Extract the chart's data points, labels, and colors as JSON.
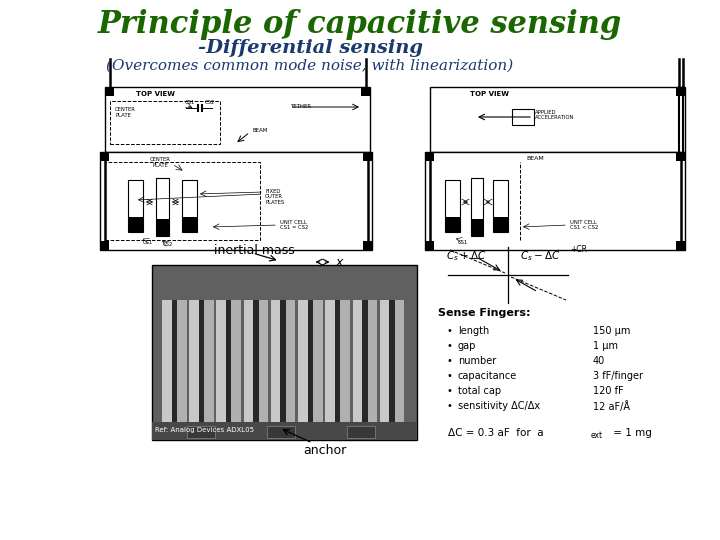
{
  "title": "Principle of capacitive sensing",
  "subtitle": "-Differential sensing",
  "subtitle2": "(Overcomes common mode noise, with linearization)",
  "title_color": "#1a6600",
  "subtitle_color": "#1a3a6e",
  "subtitle2_color": "#1a3a6e",
  "bg_color": "#ffffff",
  "title_fontsize": 22,
  "subtitle_fontsize": 14,
  "subtitle2_fontsize": 11,
  "sense_fingers_title": "Sense Fingers:",
  "sense_fingers_items": [
    [
      "length",
      "150 μm"
    ],
    [
      "gap",
      "1 μm"
    ],
    [
      "number",
      "40"
    ],
    [
      "capacitance",
      "3 fF/finger"
    ],
    [
      "total cap",
      "120 fF"
    ],
    [
      "sensitivity ΔC/Δx",
      "12 aF/Å"
    ]
  ],
  "bottom_eq": "ΔC = 0.3 aF  for  a",
  "bottom_eq_sub": "ext",
  "bottom_eq_end": " = 1 mg"
}
